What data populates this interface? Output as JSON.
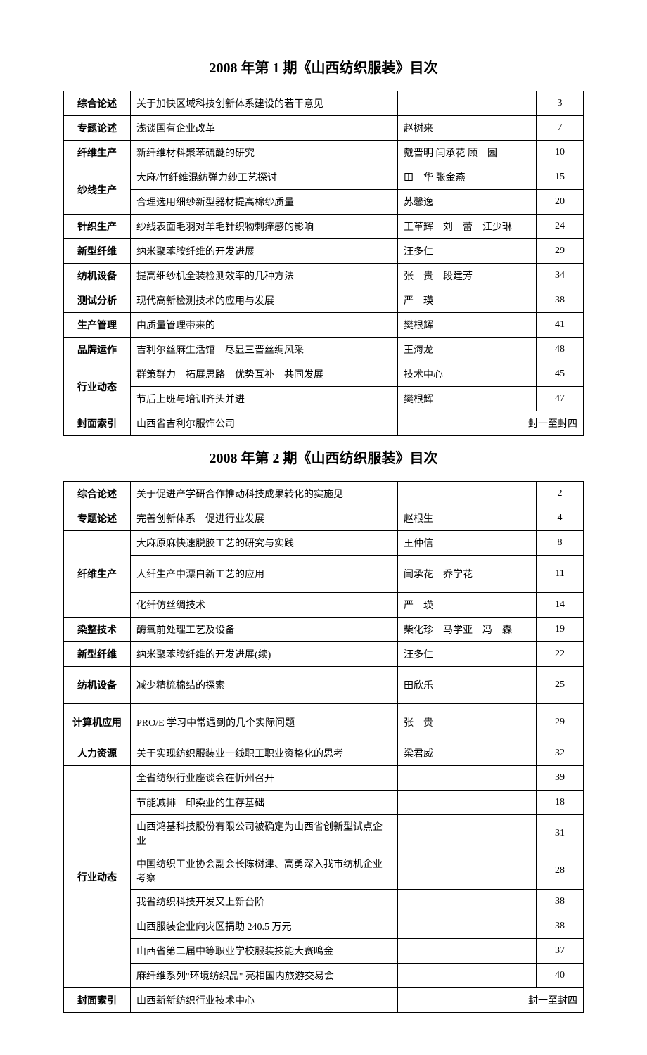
{
  "issues": [
    {
      "title": "2008 年第 1 期《山西纺织服装》目次",
      "rows": [
        {
          "category": "综合论述",
          "rowspan": 1,
          "items": [
            {
              "title": "关于加快区域科技创新体系建设的若干意见",
              "author": "",
              "page": "3"
            }
          ]
        },
        {
          "category": "专题论述",
          "rowspan": 1,
          "items": [
            {
              "title": "浅谈国有企业改革",
              "author": "赵树来",
              "page": "7"
            }
          ]
        },
        {
          "category": "纤维生产",
          "rowspan": 1,
          "items": [
            {
              "title": "新纤维材料聚苯硫醚的研究",
              "author": "戴晋明 闫承花 顾　园",
              "page": "10"
            }
          ]
        },
        {
          "category": "纱线生产",
          "rowspan": 2,
          "items": [
            {
              "title": "大麻/竹纤维混纺弹力纱工艺探讨",
              "author": "田　华 张金燕",
              "page": "15"
            },
            {
              "title": "合理选用细纱新型器材提高棉纱质量",
              "author": "苏馨逸",
              "page": "20"
            }
          ]
        },
        {
          "category": "针织生产",
          "rowspan": 1,
          "items": [
            {
              "title": "纱线表面毛羽对羊毛针织物刺痒感的影响",
              "author": "王革辉　刘　蕾　江少琳",
              "page": "24"
            }
          ]
        },
        {
          "category": "新型纤维",
          "rowspan": 1,
          "items": [
            {
              "title": "纳米聚苯胺纤维的开发进展",
              "author": "汪多仁",
              "page": "29"
            }
          ]
        },
        {
          "category": "纺机设备",
          "rowspan": 1,
          "items": [
            {
              "title": "提高细纱机全装检测效率的几种方法",
              "author": "张　贵　段建芳",
              "page": "34"
            }
          ]
        },
        {
          "category": "测试分析",
          "rowspan": 1,
          "items": [
            {
              "title": "现代高新检测技术的应用与发展",
              "author": "严　瑛",
              "page": "38"
            }
          ]
        },
        {
          "category": "生产管理",
          "rowspan": 1,
          "items": [
            {
              "title": "由质量管理带来的",
              "author": "樊根辉",
              "page": "41"
            }
          ]
        },
        {
          "category": "品牌运作",
          "rowspan": 1,
          "items": [
            {
              "title": "吉利尔丝麻生活馆　尽显三晋丝绸风采",
              "author": "王海龙",
              "page": "48"
            }
          ]
        },
        {
          "category": "行业动态",
          "rowspan": 2,
          "items": [
            {
              "title": "群策群力　拓展思路　优势互补　共同发展",
              "author": "技术中心",
              "page": "45"
            },
            {
              "title": "节后上班与培训齐头并进",
              "author": "樊根辉",
              "page": "47"
            }
          ]
        },
        {
          "category": "封面索引",
          "rowspan": 1,
          "cover": true,
          "items": [
            {
              "title": "山西省吉利尔服饰公司",
              "author": "",
              "page": "封一至封四"
            }
          ]
        }
      ]
    },
    {
      "title": "2008 年第 2 期《山西纺织服装》目次",
      "rows": [
        {
          "category": "综合论述",
          "rowspan": 1,
          "items": [
            {
              "title": "关于促进产学研合作推动科技成果转化的实施见",
              "author": "",
              "page": "2"
            }
          ]
        },
        {
          "category": "专题论述",
          "rowspan": 1,
          "items": [
            {
              "title": "完善创新体系　促进行业发展",
              "author": "赵根生",
              "page": "4"
            }
          ]
        },
        {
          "category": "纤维生产",
          "rowspan": 3,
          "items": [
            {
              "title": "大麻原麻快速脱胶工艺的研究与实践",
              "author": "王仲信",
              "page": "8"
            },
            {
              "title": "人纤生产中漂白新工艺的应用",
              "author": "闫承花　乔学花",
              "page": "11",
              "tall": true
            },
            {
              "title": "化纤仿丝绸技术",
              "author": "严　瑛",
              "page": "14"
            }
          ]
        },
        {
          "category": "染整技术",
          "rowspan": 1,
          "items": [
            {
              "title": "酶氧前处理工艺及设备",
              "author": "柴化珍　马学亚　冯　森",
              "page": "19"
            }
          ]
        },
        {
          "category": "新型纤维",
          "rowspan": 1,
          "items": [
            {
              "title": "纳米聚苯胺纤维的开发进展(续)",
              "author": "汪多仁",
              "page": "22"
            }
          ]
        },
        {
          "category": "纺机设备",
          "rowspan": 1,
          "items": [
            {
              "title": "减少精梳棉结的探索",
              "author": "田欣乐",
              "page": "25",
              "tall": true
            }
          ]
        },
        {
          "category": "计算机应用",
          "rowspan": 1,
          "items": [
            {
              "title": "PRO/E 学习中常遇到的几个实际问题",
              "author": "张　贵",
              "page": "29",
              "tall": true
            }
          ]
        },
        {
          "category": "人力资源",
          "rowspan": 1,
          "items": [
            {
              "title": "关于实现纺织服装业一线职工职业资格化的思考",
              "author": "梁君威",
              "page": "32"
            }
          ]
        },
        {
          "category": "行业动态",
          "rowspan": 8,
          "items": [
            {
              "title": "全省纺织行业座谈会在忻州召开",
              "author": "",
              "page": "39"
            },
            {
              "title": "节能减排　印染业的生存基础",
              "author": "",
              "page": "18"
            },
            {
              "title": "山西鸿基科技股份有限公司被确定为山西省创新型试点企业",
              "author": "",
              "page": "31"
            },
            {
              "title": "中国纺织工业协会副会长陈树津、高勇深入我市纺机企业考察",
              "author": "",
              "page": "28"
            },
            {
              "title": "我省纺织科技开发又上新台阶",
              "author": "",
              "page": "38"
            },
            {
              "title": "山西服装企业向灾区捐助 240.5 万元",
              "author": "",
              "page": "38"
            },
            {
              "title": "山西省第二届中等职业学校服装技能大赛鸣金",
              "author": "",
              "page": "37"
            },
            {
              "title": "麻纤维系列\"环境纺织品\" 亮相国内旅游交易会",
              "author": "",
              "page": "40"
            }
          ]
        },
        {
          "category": "封面索引",
          "rowspan": 1,
          "cover": true,
          "items": [
            {
              "title": "山西新新纺织行业技术中心",
              "author": "",
              "page": "封一至封四"
            }
          ]
        }
      ]
    }
  ]
}
